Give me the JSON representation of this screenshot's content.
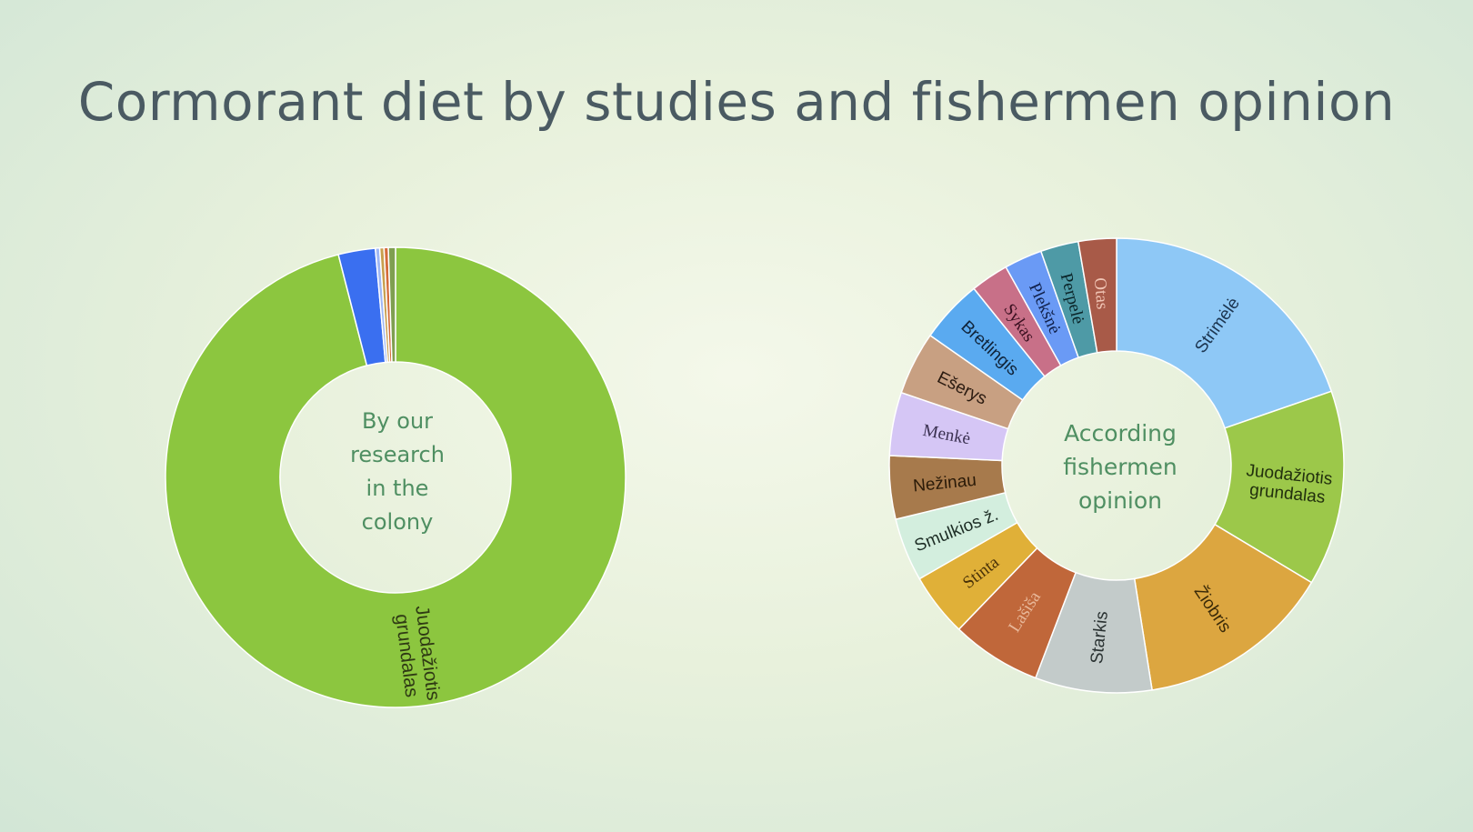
{
  "title": "Cormorant diet by studies and fishermen opinion",
  "chart_data": [
    {
      "type": "pie",
      "center_label": [
        "By our",
        "research",
        "in the",
        "colony"
      ],
      "slices": [
        {
          "label": "Juodažiotis grundalas",
          "value": 96.0,
          "color": "#8cc63f",
          "label_color": "#2f3a14",
          "label_lines": [
            "Juodažiotis",
            "grundalas"
          ]
        },
        {
          "label": "",
          "value": 2.6,
          "color": "#3a6ff0"
        },
        {
          "label": "",
          "value": 0.3,
          "color": "#9fb7f4"
        },
        {
          "label": "",
          "value": 0.3,
          "color": "#c8a050"
        },
        {
          "label": "",
          "value": 0.3,
          "color": "#d46a3a"
        },
        {
          "label": "",
          "value": 0.5,
          "color": "#7f9f50"
        }
      ]
    },
    {
      "type": "pie",
      "center_label": [
        "According",
        "fishermen",
        "opinion"
      ],
      "slices": [
        {
          "label": "Strimėlė",
          "value": 19.7,
          "color": "#8ec8f6",
          "label_color": "#1c3550",
          "label_lines": [
            "Strimėlė"
          ]
        },
        {
          "label": "Juodažiotis grundalas",
          "value": 13.9,
          "color": "#9cc84a",
          "label_color": "#22300e",
          "label_lines": [
            "Juodažiotis",
            "grundalas"
          ]
        },
        {
          "label": "Žiobris",
          "value": 13.9,
          "color": "#dca640",
          "label_color": "#3a2a08",
          "label_lines": [
            "Žiobris"
          ]
        },
        {
          "label": "Starkis",
          "value": 8.3,
          "color": "#c3cbca",
          "label_color": "#2a3232",
          "label_lines": [
            "Starkis"
          ]
        },
        {
          "label": "Lašiša",
          "value": 6.4,
          "color": "#c0673a",
          "label_color": "#e8b89a",
          "label_lines": [
            "Lašiša"
          ],
          "serif": true
        },
        {
          "label": "Stinta",
          "value": 4.5,
          "color": "#e0b038",
          "label_color": "#4a3208",
          "label_lines": [
            "Stinta"
          ],
          "serif": true
        },
        {
          "label": "Smulkios ž.",
          "value": 4.5,
          "color": "#d3eede",
          "label_color": "#1e2e26",
          "label_lines": [
            "Smulkios ž."
          ]
        },
        {
          "label": "Nežinau",
          "value": 4.5,
          "color": "#a77a4c",
          "label_color": "#2a1a08",
          "label_lines": [
            "Nežinau"
          ]
        },
        {
          "label": "Menkė",
          "value": 4.5,
          "color": "#d5c6f5",
          "label_color": "#3a3050",
          "label_lines": [
            "Menkė"
          ],
          "serif": true
        },
        {
          "label": "Ešerys",
          "value": 4.5,
          "color": "#c8a082",
          "label_color": "#2a1a10",
          "label_lines": [
            "Ešerys"
          ]
        },
        {
          "label": "Bretlingis",
          "value": 4.5,
          "color": "#5aaaf0",
          "label_color": "#10243a",
          "label_lines": [
            "Bretlingis"
          ]
        },
        {
          "label": "Sykas",
          "value": 2.7,
          "color": "#c87088",
          "label_color": "#3a1020",
          "label_lines": [
            "Sykas"
          ],
          "serif": true
        },
        {
          "label": "Plekšnė",
          "value": 2.7,
          "color": "#6a9af5",
          "label_color": "#10204a",
          "label_lines": [
            "Plekšnė"
          ],
          "serif": true
        },
        {
          "label": "Perpelė",
          "value": 2.7,
          "color": "#4e9aa6",
          "label_color": "#0a2428",
          "label_lines": [
            "Perpelė"
          ],
          "serif": true
        },
        {
          "label": "Otas",
          "value": 2.7,
          "color": "#a85a48",
          "label_color": "#f0c4b4",
          "label_lines": [
            "Otas"
          ],
          "serif": true
        }
      ]
    }
  ]
}
